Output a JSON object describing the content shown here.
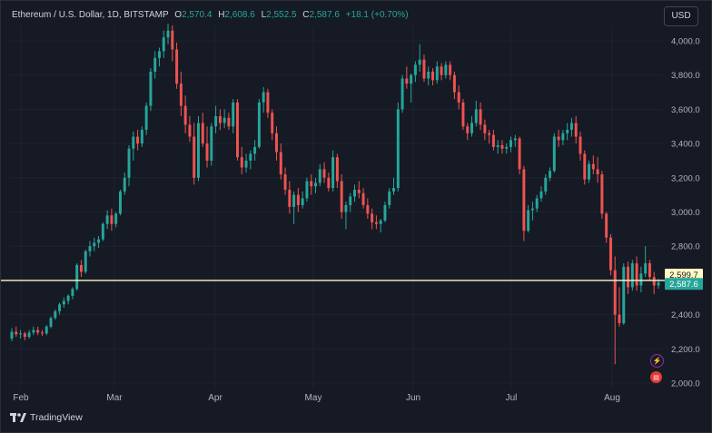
{
  "header": {
    "symbol": "Ethereum / U.S. Dollar, 1D, BITSTAMP",
    "o_label": "O",
    "o_value": "2,570.4",
    "h_label": "H",
    "h_value": "2,608.6",
    "l_label": "L",
    "l_value": "2,552.5",
    "c_label": "C",
    "c_value": "2,587.6",
    "change": "+18.1 (+0.70%)"
  },
  "currency_button": "USD",
  "brand": "TradingView",
  "colors": {
    "up": "#26a69a",
    "down": "#ef5350",
    "background": "#161a25",
    "grid": "#1f2330",
    "hline": "#fff8c8"
  },
  "icons": [
    "lightning-icon",
    "us-flag-icon"
  ],
  "chart_data": {
    "type": "candlestick",
    "title": "Ethereum / U.S. Dollar, 1D, BITSTAMP",
    "ylim": [
      1880,
      4110
    ],
    "y_ticks": [
      "4,000.0",
      "3,800.0",
      "3,600.0",
      "3,400.0",
      "3,200.0",
      "3,000.0",
      "2,800.0",
      "2,600.0",
      "2,400.0",
      "2,200.0",
      "2,000.0"
    ],
    "x_labels": [
      "Feb",
      "Mar",
      "Apr",
      "May",
      "Jun",
      "Jul",
      "Aug"
    ],
    "price_labels": {
      "horizontal_line": "2,599.7",
      "last_price": "2,587.6"
    },
    "horizontal_line_value": 2599.7,
    "last_close": 2587.6,
    "candles": [
      [
        2260,
        2320,
        2245,
        2300
      ],
      [
        2300,
        2330,
        2270,
        2285
      ],
      [
        2285,
        2310,
        2260,
        2290
      ],
      [
        2290,
        2300,
        2250,
        2270
      ],
      [
        2270,
        2310,
        2260,
        2295
      ],
      [
        2295,
        2330,
        2280,
        2310
      ],
      [
        2310,
        2330,
        2280,
        2295
      ],
      [
        2295,
        2310,
        2275,
        2290
      ],
      [
        2290,
        2340,
        2280,
        2330
      ],
      [
        2330,
        2390,
        2320,
        2380
      ],
      [
        2380,
        2430,
        2370,
        2420
      ],
      [
        2420,
        2470,
        2400,
        2460
      ],
      [
        2460,
        2500,
        2440,
        2480
      ],
      [
        2480,
        2520,
        2460,
        2510
      ],
      [
        2510,
        2560,
        2490,
        2550
      ],
      [
        2550,
        2700,
        2540,
        2690
      ],
      [
        2690,
        2720,
        2620,
        2650
      ],
      [
        2650,
        2780,
        2640,
        2770
      ],
      [
        2770,
        2830,
        2740,
        2800
      ],
      [
        2800,
        2850,
        2770,
        2820
      ],
      [
        2820,
        2860,
        2790,
        2840
      ],
      [
        2840,
        2940,
        2830,
        2930
      ],
      [
        2930,
        3010,
        2900,
        2980
      ],
      [
        2980,
        3020,
        2890,
        2930
      ],
      [
        2930,
        3000,
        2910,
        2990
      ],
      [
        2990,
        3130,
        2980,
        3120
      ],
      [
        3120,
        3230,
        3100,
        3200
      ],
      [
        3200,
        3390,
        3150,
        3370
      ],
      [
        3370,
        3470,
        3300,
        3440
      ],
      [
        3440,
        3480,
        3360,
        3400
      ],
      [
        3400,
        3500,
        3380,
        3480
      ],
      [
        3480,
        3640,
        3450,
        3620
      ],
      [
        3620,
        3840,
        3590,
        3820
      ],
      [
        3820,
        3940,
        3780,
        3900
      ],
      [
        3900,
        3960,
        3850,
        3940
      ],
      [
        3940,
        4060,
        3900,
        4020
      ],
      [
        4020,
        4100,
        3980,
        4060
      ],
      [
        4060,
        4090,
        3880,
        3950
      ],
      [
        3950,
        3990,
        3720,
        3750
      ],
      [
        3750,
        3820,
        3560,
        3620
      ],
      [
        3620,
        3680,
        3460,
        3510
      ],
      [
        3510,
        3560,
        3410,
        3440
      ],
      [
        3440,
        3520,
        3160,
        3200
      ],
      [
        3200,
        3560,
        3180,
        3520
      ],
      [
        3520,
        3580,
        3380,
        3400
      ],
      [
        3400,
        3500,
        3260,
        3300
      ],
      [
        3300,
        3520,
        3270,
        3500
      ],
      [
        3500,
        3620,
        3460,
        3560
      ],
      [
        3560,
        3600,
        3480,
        3520
      ],
      [
        3520,
        3600,
        3490,
        3550
      ],
      [
        3550,
        3580,
        3480,
        3500
      ],
      [
        3500,
        3660,
        3460,
        3640
      ],
      [
        3640,
        3660,
        3300,
        3320
      ],
      [
        3320,
        3380,
        3220,
        3260
      ],
      [
        3260,
        3340,
        3230,
        3300
      ],
      [
        3300,
        3360,
        3250,
        3340
      ],
      [
        3340,
        3420,
        3300,
        3380
      ],
      [
        3380,
        3660,
        3370,
        3640
      ],
      [
        3640,
        3730,
        3580,
        3700
      ],
      [
        3700,
        3720,
        3550,
        3580
      ],
      [
        3580,
        3600,
        3420,
        3460
      ],
      [
        3460,
        3500,
        3300,
        3350
      ],
      [
        3350,
        3400,
        3190,
        3220
      ],
      [
        3220,
        3260,
        3100,
        3130
      ],
      [
        3130,
        3180,
        2990,
        3030
      ],
      [
        3030,
        3120,
        2930,
        3100
      ],
      [
        3100,
        3140,
        3000,
        3040
      ],
      [
        3040,
        3120,
        3020,
        3080
      ],
      [
        3080,
        3200,
        3060,
        3180
      ],
      [
        3180,
        3220,
        3100,
        3150
      ],
      [
        3150,
        3200,
        3110,
        3170
      ],
      [
        3170,
        3280,
        3150,
        3250
      ],
      [
        3250,
        3290,
        3170,
        3200
      ],
      [
        3200,
        3230,
        3120,
        3140
      ],
      [
        3140,
        3360,
        3120,
        3320
      ],
      [
        3320,
        3340,
        3140,
        3180
      ],
      [
        3180,
        3220,
        2960,
        3000
      ],
      [
        3000,
        3060,
        2900,
        3040
      ],
      [
        3040,
        3110,
        3000,
        3090
      ],
      [
        3090,
        3160,
        3060,
        3130
      ],
      [
        3130,
        3180,
        3080,
        3110
      ],
      [
        3110,
        3140,
        3020,
        3040
      ],
      [
        3040,
        3080,
        2960,
        2990
      ],
      [
        2990,
        3020,
        2900,
        2940
      ],
      [
        2940,
        2980,
        2900,
        2930
      ],
      [
        2930,
        2960,
        2880,
        2950
      ],
      [
        2950,
        3060,
        2940,
        3040
      ],
      [
        3040,
        3140,
        3020,
        3120
      ],
      [
        3120,
        3200,
        3100,
        3140
      ],
      [
        3140,
        3640,
        3120,
        3600
      ],
      [
        3600,
        3800,
        3580,
        3780
      ],
      [
        3780,
        3850,
        3720,
        3750
      ],
      [
        3750,
        3810,
        3640,
        3800
      ],
      [
        3800,
        3880,
        3760,
        3860
      ],
      [
        3860,
        3980,
        3820,
        3890
      ],
      [
        3890,
        3920,
        3760,
        3780
      ],
      [
        3780,
        3850,
        3740,
        3820
      ],
      [
        3820,
        3840,
        3740,
        3770
      ],
      [
        3770,
        3880,
        3750,
        3850
      ],
      [
        3850,
        3870,
        3770,
        3800
      ],
      [
        3800,
        3880,
        3780,
        3860
      ],
      [
        3860,
        3880,
        3770,
        3800
      ],
      [
        3800,
        3820,
        3660,
        3700
      ],
      [
        3700,
        3740,
        3600,
        3640
      ],
      [
        3640,
        3660,
        3480,
        3500
      ],
      [
        3500,
        3520,
        3420,
        3460
      ],
      [
        3460,
        3560,
        3440,
        3520
      ],
      [
        3520,
        3650,
        3500,
        3600
      ],
      [
        3600,
        3640,
        3480,
        3510
      ],
      [
        3510,
        3540,
        3420,
        3460
      ],
      [
        3460,
        3480,
        3400,
        3450
      ],
      [
        3450,
        3480,
        3360,
        3380
      ],
      [
        3380,
        3420,
        3340,
        3390
      ],
      [
        3390,
        3420,
        3340,
        3370
      ],
      [
        3370,
        3400,
        3340,
        3380
      ],
      [
        3380,
        3440,
        3350,
        3420
      ],
      [
        3420,
        3450,
        3380,
        3430
      ],
      [
        3430,
        3440,
        3220,
        3250
      ],
      [
        3250,
        3270,
        2830,
        2890
      ],
      [
        2890,
        3040,
        2880,
        3010
      ],
      [
        3010,
        3060,
        2950,
        3020
      ],
      [
        3020,
        3100,
        3000,
        3080
      ],
      [
        3080,
        3150,
        3060,
        3120
      ],
      [
        3120,
        3220,
        3100,
        3200
      ],
      [
        3200,
        3260,
        3180,
        3240
      ],
      [
        3240,
        3460,
        3230,
        3440
      ],
      [
        3440,
        3480,
        3380,
        3420
      ],
      [
        3420,
        3480,
        3390,
        3460
      ],
      [
        3460,
        3520,
        3420,
        3480
      ],
      [
        3480,
        3550,
        3440,
        3520
      ],
      [
        3520,
        3560,
        3400,
        3440
      ],
      [
        3440,
        3470,
        3300,
        3340
      ],
      [
        3340,
        3360,
        3160,
        3190
      ],
      [
        3190,
        3300,
        3170,
        3280
      ],
      [
        3280,
        3330,
        3220,
        3250
      ],
      [
        3250,
        3320,
        3170,
        3220
      ],
      [
        3220,
        3240,
        2960,
        2990
      ],
      [
        2990,
        3000,
        2820,
        2850
      ],
      [
        2850,
        2870,
        2630,
        2660
      ],
      [
        2660,
        2740,
        2110,
        2400
      ],
      [
        2400,
        2560,
        2330,
        2350
      ],
      [
        2350,
        2700,
        2340,
        2680
      ],
      [
        2680,
        2710,
        2520,
        2560
      ],
      [
        2560,
        2720,
        2540,
        2700
      ],
      [
        2700,
        2740,
        2540,
        2570
      ],
      [
        2570,
        2680,
        2530,
        2640
      ],
      [
        2640,
        2800,
        2620,
        2700
      ],
      [
        2700,
        2720,
        2600,
        2620
      ],
      [
        2620,
        2650,
        2520,
        2570
      ],
      [
        2570,
        2609,
        2552,
        2588
      ]
    ]
  }
}
